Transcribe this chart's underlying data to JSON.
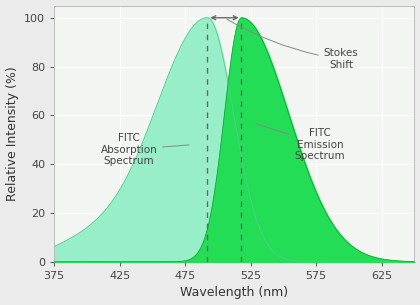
{
  "title": "",
  "xlabel": "Wavelength (nm)",
  "ylabel": "Relative Intensity (%)",
  "xlim": [
    375,
    650
  ],
  "ylim": [
    0,
    105
  ],
  "xticks": [
    375,
    425,
    475,
    525,
    575,
    625
  ],
  "yticks": [
    0,
    20,
    40,
    60,
    80,
    100
  ],
  "absorption_peak": 492,
  "emission_peak": 518,
  "absorption_fill_color": "#98EEC8",
  "emission_fill_color": "#22DD55",
  "dashed_color": "#666666",
  "arrow_color": "#666666",
  "bg_color": "#F2F5F2",
  "grid_color": "#FFFFFF",
  "label_absorption": "FITC\nAbsorption\nSpectrum",
  "label_emission": "FITC\nEmission\nSpectrum",
  "label_stokes": "Stokes\nShift",
  "label_fontsize": 7.5,
  "axis_fontsize": 9,
  "tick_fontsize": 8
}
